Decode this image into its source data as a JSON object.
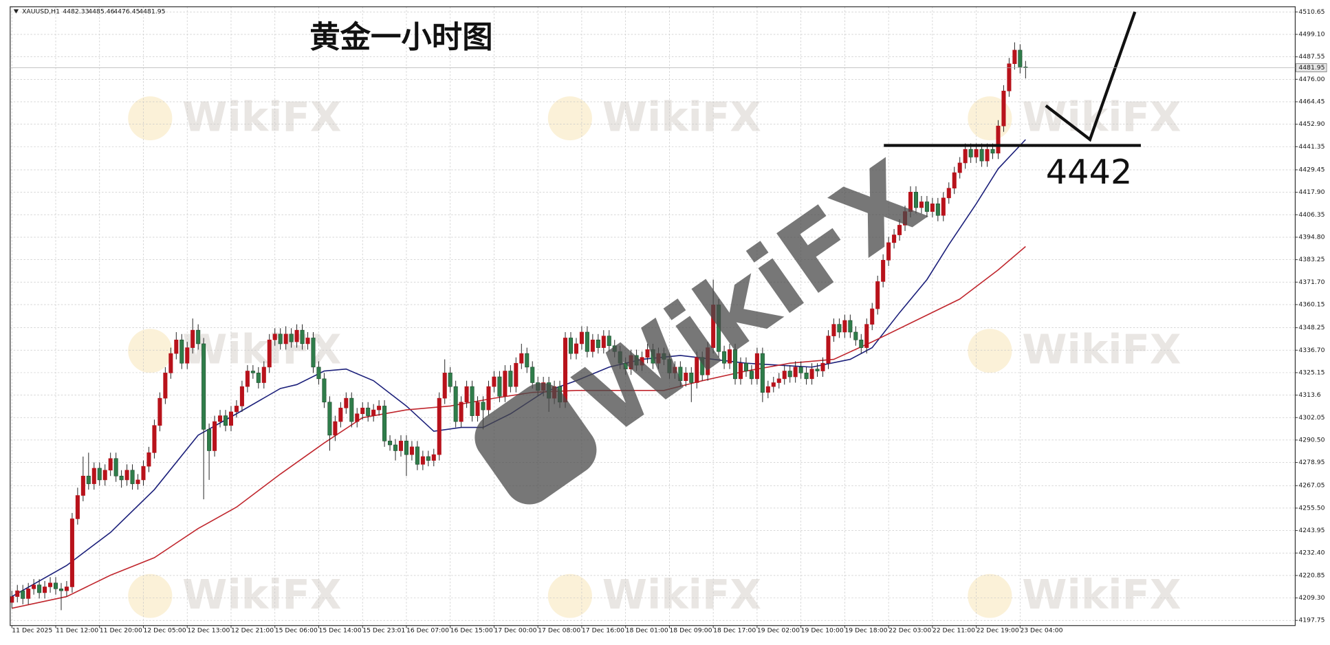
{
  "chart_data": {
    "type": "candlestick",
    "title": "黄金一小时图",
    "symbol": "XAUUSD,H1",
    "watermark": "WikiFX",
    "grid": true,
    "colors": {
      "up": "#b8121b",
      "down": "#2f7d4a",
      "wick": "#222222"
    },
    "ylim": [
      4195.1,
      4513.3
    ],
    "yticks": [
      4197.75,
      {
        "value": 4209.3,
        "label": "4209.30"
      },
      4220.85,
      {
        "value": 4232.4,
        "label": "4232.40"
      },
      4243.95,
      {
        "value": 4255.5,
        "label": "4255.50"
      },
      4267.05,
      4278.95,
      {
        "value": 4290.5,
        "label": "4290.50"
      },
      4302.05,
      4313.6,
      4325.15,
      {
        "value": 4336.7,
        "label": "4336.70"
      },
      4348.25,
      4360.15,
      {
        "value": 4371.7,
        "label": "4371.70"
      },
      4383.25,
      {
        "value": 4394.8,
        "label": "4394.80"
      },
      4406.35,
      {
        "value": 4417.9,
        "label": "4417.90"
      },
      4429.45,
      4441.35,
      {
        "value": 4452.9,
        "label": "4452.90"
      },
      4464.45,
      {
        "value": 4476,
        "label": "4476.00"
      },
      4487.55,
      {
        "value": 4499.1,
        "label": "4499.10"
      },
      4510.65
    ],
    "categories": [
      "11 Dec 2025",
      null,
      null,
      null,
      null,
      null,
      null,
      null,
      "11 Dec 12:00",
      null,
      null,
      null,
      null,
      null,
      null,
      null,
      "11 Dec 20:00",
      null,
      null,
      null,
      null,
      null,
      null,
      null,
      "12 Dec 05:00",
      null,
      null,
      null,
      null,
      null,
      null,
      null,
      "12 Dec 13:00",
      null,
      null,
      null,
      null,
      null,
      null,
      null,
      "12 Dec 21:00",
      null,
      null,
      null,
      null,
      null,
      null,
      null,
      "15 Dec 06:00",
      null,
      null,
      null,
      null,
      null,
      null,
      null,
      "15 Dec 14:00",
      null,
      null,
      null,
      null,
      null,
      null,
      null,
      "15 Dec 23:01",
      null,
      null,
      null,
      null,
      null,
      null,
      null,
      "16 Dec 07:00",
      null,
      null,
      null,
      null,
      null,
      null,
      null,
      "16 Dec 15:00",
      null,
      null,
      null,
      null,
      null,
      null,
      null,
      "17 Dec 00:00",
      null,
      null,
      null,
      null,
      null,
      null,
      null,
      "17 Dec 08:00",
      null,
      null,
      null,
      null,
      null,
      null,
      null,
      "17 Dec 16:00",
      null,
      null,
      null,
      null,
      null,
      null,
      null,
      "18 Dec 01:00",
      null,
      null,
      null,
      null,
      null,
      null,
      null,
      "18 Dec 09:00",
      null,
      null,
      null,
      null,
      null,
      null,
      null,
      "18 Dec 17:00",
      null,
      null,
      null,
      null,
      null,
      null,
      null,
      "19 Dec 02:00",
      null,
      null,
      null,
      null,
      null,
      null,
      null,
      "19 Dec 10:00",
      null,
      null,
      null,
      null,
      null,
      null,
      null,
      "19 Dec 18:00",
      null,
      null,
      null,
      null,
      null,
      null,
      null,
      "22 Dec 03:00",
      null,
      null,
      null,
      null,
      null,
      null,
      null,
      "22 Dec 11:00",
      null,
      null,
      null,
      null,
      null,
      null,
      null,
      "22 Dec 19:00",
      null,
      null,
      null,
      null,
      null,
      null,
      null,
      "23 Dec 04:00",
      null
    ],
    "open": [
      4207,
      4210,
      4213,
      4209,
      4214,
      4216,
      4212,
      4215,
      4217,
      4214,
      4213,
      4215,
      4250,
      4262,
      4272,
      4268,
      4276,
      4270,
      4275,
      4281,
      4272,
      4270,
      4275,
      4268,
      4270,
      4277,
      4284,
      4298,
      4312,
      4325,
      4335,
      4342,
      4330,
      4338,
      4347,
      4340,
      4296,
      4285,
      4300,
      4303,
      4298,
      4305,
      4308,
      4318,
      4326,
      4325,
      4320,
      4328,
      4342,
      4345,
      4340,
      4345,
      4341,
      4347,
      4340,
      4343,
      4328,
      4322,
      4310,
      4293,
      4300,
      4307,
      4312,
      4300,
      4304,
      4307,
      4303,
      4306,
      4308,
      4290,
      4288,
      4285,
      4290,
      4283,
      4287,
      4278,
      4282,
      4280,
      4283,
      4312,
      4325,
      4318,
      4300,
      4310,
      4318,
      4303,
      4310,
      4306,
      4318,
      4323,
      4313,
      4326,
      4318,
      4330,
      4335,
      4328,
      4320,
      4316,
      4320,
      4312,
      4318,
      4310,
      4343,
      4335,
      4340,
      4346,
      4336,
      4342,
      4338,
      4344,
      4339,
      4336,
      4330,
      4327,
      4334,
      4329,
      4333,
      4337,
      4330,
      4335,
      4332,
      4325,
      4328,
      4321,
      4325,
      4320,
      4333,
      4324,
      4338,
      4360,
      4336,
      4330,
      4337,
      4322,
      4330,
      4326,
      4322,
      4335,
      4315,
      4318,
      4320,
      4322,
      4326,
      4323,
      4328,
      4325,
      4322,
      4327,
      4326,
      4330,
      4344,
      4350,
      4346,
      4352,
      4346,
      4342,
      4338,
      4350,
      4358,
      4372,
      4383,
      4392,
      4396,
      4401,
      4408,
      4418,
      4410,
      4413,
      4408,
      4412,
      4406,
      4415,
      4420,
      4428,
      4433,
      4440,
      4436,
      4440,
      4434,
      4440,
      4438,
      4452,
      4470,
      4484,
      4491,
      4482.33
    ],
    "high": [
      4213,
      4216,
      4216,
      4217,
      4219,
      4219,
      4218,
      4220,
      4220,
      4217,
      4218,
      4253,
      4266,
      4282,
      4284,
      4279,
      4279,
      4278,
      4284,
      4284,
      4275,
      4278,
      4278,
      4273,
      4280,
      4287,
      4301,
      4315,
      4328,
      4338,
      4346,
      4345,
      4341,
      4353,
      4350,
      4343,
      4299,
      4303,
      4306,
      4306,
      4308,
      4311,
      4321,
      4329,
      4329,
      4328,
      4331,
      4345,
      4348,
      4348,
      4349,
      4348,
      4350,
      4350,
      4346,
      4346,
      4331,
      4325,
      4313,
      4303,
      4310,
      4315,
      4315,
      4307,
      4310,
      4310,
      4309,
      4311,
      4311,
      4293,
      4291,
      4293,
      4293,
      4290,
      4290,
      4285,
      4285,
      4286,
      4315,
      4332,
      4328,
      4321,
      4313,
      4321,
      4321,
      4313,
      4313,
      4321,
      4326,
      4326,
      4329,
      4329,
      4333,
      4340,
      4338,
      4331,
      4323,
      4323,
      4323,
      4321,
      4321,
      4346,
      4346,
      4343,
      4349,
      4349,
      4345,
      4345,
      4347,
      4347,
      4342,
      4339,
      4333,
      4337,
      4337,
      4336,
      4340,
      4340,
      4338,
      4338,
      4335,
      4331,
      4331,
      4328,
      4328,
      4336,
      4336,
      4341,
      4373,
      4363,
      4339,
      4340,
      4340,
      4333,
      4333,
      4329,
      4338,
      4338,
      4321,
      4323,
      4325,
      4329,
      4329,
      4331,
      4331,
      4328,
      4330,
      4330,
      4333,
      4347,
      4353,
      4353,
      4355,
      4355,
      4349,
      4345,
      4353,
      4361,
      4375,
      4386,
      4395,
      4399,
      4404,
      4411,
      4421,
      4421,
      4416,
      4416,
      4415,
      4415,
      4418,
      4423,
      4431,
      4436,
      4443,
      4443,
      4443,
      4443,
      4443,
      4443,
      4455,
      4473,
      4487,
      4495,
      4494,
      4485.46
    ],
    "low": [
      4204,
      4207,
      4206,
      4206,
      4211,
      4209,
      4209,
      4212,
      4211,
      4203,
      4210,
      4212,
      4247,
      4259,
      4265,
      4265,
      4267,
      4267,
      4272,
      4269,
      4266,
      4267,
      4265,
      4265,
      4267,
      4274,
      4281,
      4295,
      4309,
      4322,
      4332,
      4327,
      4327,
      4335,
      4337,
      4260,
      4270,
      4282,
      4297,
      4295,
      4295,
      4302,
      4305,
      4315,
      4322,
      4317,
      4317,
      4325,
      4339,
      4337,
      4337,
      4338,
      4338,
      4337,
      4337,
      4325,
      4319,
      4307,
      4285,
      4290,
      4297,
      4304,
      4297,
      4297,
      4301,
      4300,
      4300,
      4303,
      4287,
      4285,
      4280,
      4282,
      4272,
      4280,
      4275,
      4275,
      4277,
      4277,
      4280,
      4309,
      4315,
      4297,
      4297,
      4307,
      4300,
      4300,
      4296,
      4303,
      4315,
      4310,
      4310,
      4315,
      4315,
      4327,
      4325,
      4317,
      4313,
      4313,
      4305,
      4309,
      4307,
      4307,
      4332,
      4332,
      4337,
      4333,
      4333,
      4335,
      4335,
      4336,
      4333,
      4327,
      4324,
      4324,
      4326,
      4326,
      4330,
      4327,
      4327,
      4329,
      4322,
      4322,
      4318,
      4318,
      4310,
      4317,
      4321,
      4321,
      4335,
      4333,
      4327,
      4327,
      4319,
      4319,
      4323,
      4319,
      4319,
      4310,
      4312,
      4315,
      4317,
      4319,
      4320,
      4320,
      4322,
      4319,
      4319,
      4323,
      4323,
      4327,
      4341,
      4343,
      4343,
      4343,
      4339,
      4335,
      4335,
      4347,
      4355,
      4369,
      4380,
      4389,
      4393,
      4398,
      4405,
      4407,
      4407,
      4405,
      4405,
      4403,
      4403,
      4412,
      4417,
      4425,
      4430,
      4433,
      4433,
      4431,
      4431,
      4435,
      4435,
      4449,
      4467,
      4481,
      4479,
      4476.45
    ],
    "close": [
      4210,
      4213,
      4209,
      4214,
      4216,
      4212,
      4215,
      4217,
      4214,
      4213,
      4215,
      4250,
      4262,
      4272,
      4268,
      4276,
      4270,
      4275,
      4281,
      4272,
      4270,
      4275,
      4268,
      4270,
      4277,
      4284,
      4298,
      4312,
      4325,
      4335,
      4342,
      4330,
      4338,
      4347,
      4340,
      4296,
      4285,
      4300,
      4303,
      4298,
      4305,
      4308,
      4318,
      4326,
      4325,
      4320,
      4328,
      4342,
      4345,
      4340,
      4345,
      4341,
      4347,
      4340,
      4343,
      4328,
      4322,
      4310,
      4293,
      4300,
      4307,
      4312,
      4300,
      4304,
      4307,
      4303,
      4306,
      4308,
      4290,
      4288,
      4285,
      4290,
      4283,
      4287,
      4278,
      4282,
      4280,
      4283,
      4312,
      4325,
      4318,
      4300,
      4310,
      4318,
      4303,
      4310,
      4306,
      4318,
      4323,
      4313,
      4326,
      4318,
      4330,
      4335,
      4328,
      4320,
      4316,
      4320,
      4312,
      4318,
      4310,
      4343,
      4335,
      4340,
      4346,
      4336,
      4342,
      4338,
      4344,
      4339,
      4336,
      4330,
      4327,
      4334,
      4329,
      4333,
      4337,
      4330,
      4335,
      4332,
      4325,
      4328,
      4321,
      4325,
      4320,
      4333,
      4324,
      4338,
      4360,
      4336,
      4330,
      4337,
      4322,
      4330,
      4326,
      4322,
      4335,
      4315,
      4318,
      4320,
      4322,
      4326,
      4323,
      4328,
      4325,
      4322,
      4327,
      4326,
      4330,
      4344,
      4350,
      4346,
      4352,
      4346,
      4342,
      4338,
      4350,
      4358,
      4372,
      4383,
      4392,
      4396,
      4401,
      4408,
      4418,
      4410,
      4413,
      4408,
      4412,
      4406,
      4415,
      4420,
      4428,
      4433,
      4440,
      4436,
      4440,
      4434,
      4440,
      4438,
      4452,
      4470,
      4484,
      4491,
      4482.33,
      4481.95
    ],
    "lines": [
      {
        "color": "#1b1f7a",
        "x": [
          0,
          10,
          18,
          26,
          34,
          41,
          49,
          52,
          57,
          61,
          66,
          72,
          77,
          82,
          86,
          91,
          97,
          103,
          109,
          115,
          122,
          128,
          134,
          140,
          146,
          153,
          157,
          162,
          167,
          171,
          176,
          180,
          185
        ],
        "values": [
          4210,
          4226,
          4243,
          4265,
          4293,
          4304,
          4317,
          4319,
          4326,
          4327,
          4321,
          4308,
          4295,
          4297,
          4297,
          4304,
          4315,
          4321,
          4328,
          4332,
          4334,
          4332,
          4330,
          4329,
          4328,
          4332,
          4338,
          4356,
          4373,
          4391,
          4412,
          4430,
          4445
        ]
      },
      {
        "color": "#c0262d",
        "x": [
          0,
          10,
          18,
          26,
          34,
          41,
          49,
          57,
          64,
          72,
          80,
          88,
          95,
          103,
          111,
          119,
          126,
          134,
          142,
          150,
          157,
          165,
          173,
          180,
          185
        ],
        "values": [
          4204,
          4210,
          4221,
          4230,
          4245,
          4256,
          4273,
          4289,
          4302,
          4306,
          4308,
          4312,
          4315,
          4316,
          4316,
          4316,
          4321,
          4326,
          4330,
          4332,
          4341,
          4352,
          4363,
          4378,
          4390
        ]
      }
    ],
    "level": 4442
  }
}
